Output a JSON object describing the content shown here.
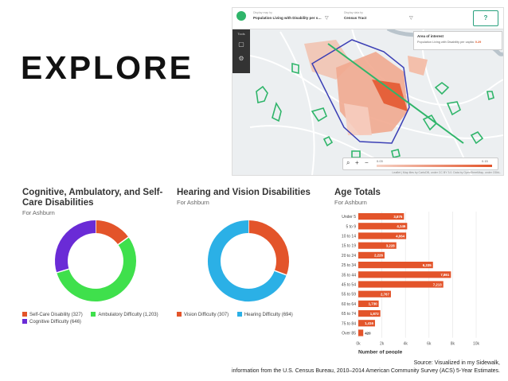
{
  "heading": "EXPLORE",
  "map": {
    "display_map_by_label": "Display map by",
    "display_map_by_value": "Population Living with Disability per s…",
    "display_data_by_label": "Display data by",
    "display_data_by_value": "Census Tract",
    "help_icon": "help-icon",
    "tools_label": "Tools",
    "aoi_title": "Area of interest",
    "aoi_text": "Population Living with Disability per capita:",
    "aoi_value": "0.29",
    "scale_min": "0.03",
    "scale_max": "0.15",
    "attribution": "Leaflet | Map tiles by CartoDB, under CC BY 3.0. Data by OpenStreetMap, under ODbL.",
    "accent": "#e3542a",
    "green": "#2fb56a",
    "boundary": "#3b3fb5"
  },
  "panel1": {
    "title_line1": "Cognitive, Ambulatory, and Self-",
    "title_line2": "Care Disabilities",
    "subtitle": "For Ashburn",
    "legend": [
      {
        "label": "Self-Care Disability (327)",
        "color": "#e3542a"
      },
      {
        "label": "Ambulatory Difficulty (1,203)",
        "color": "#3fe04c"
      },
      {
        "label": "Cognitive Difficulty (646)",
        "color": "#6a2bd6"
      }
    ]
  },
  "panel2": {
    "title": "Hearing and Vision Disabilities",
    "subtitle": "For Ashburn",
    "legend": [
      {
        "label": "Vision Difficulty (307)",
        "color": "#e3542a"
      },
      {
        "label": "Hearing Difficulty (694)",
        "color": "#2bb0e6"
      }
    ]
  },
  "panel3": {
    "title": "Age Totals",
    "subtitle": "For Ashburn"
  },
  "chart_data": [
    {
      "type": "pie",
      "title": "Cognitive, Ambulatory, and Self-Care Disabilities",
      "categories": [
        "Self-Care Disability",
        "Ambulatory Difficulty",
        "Cognitive Difficulty"
      ],
      "values": [
        327,
        1203,
        646
      ],
      "colors": [
        "#e3542a",
        "#3fe04c",
        "#6a2bd6"
      ]
    },
    {
      "type": "pie",
      "title": "Hearing and Vision Disabilities",
      "categories": [
        "Vision Difficulty",
        "Hearing Difficulty"
      ],
      "values": [
        307,
        694
      ],
      "colors": [
        "#e3542a",
        "#2bb0e6"
      ]
    },
    {
      "type": "bar",
      "orientation": "horizontal",
      "title": "Age Totals",
      "categories": [
        "Under 5",
        "5 to 9",
        "10 to 14",
        "15 to 19",
        "20 to 24",
        "25 to 34",
        "35 to 44",
        "45 to 54",
        "55 to 59",
        "60 to 64",
        "65 to 74",
        "75 to 84",
        "Over 85"
      ],
      "values": [
        3875,
        4146,
        4064,
        3228,
        2226,
        6335,
        7861,
        7213,
        2767,
        1730,
        1872,
        1416,
        420
      ],
      "labels": [
        "3,875",
        "4,146",
        "4,064",
        "3,228",
        "2,226",
        "6,335",
        "7,861",
        "7,213",
        "2,767",
        "1,730",
        "1,872",
        "1,416",
        "420"
      ],
      "xlim": [
        0,
        10000
      ],
      "xticks": [
        "0k",
        "2k",
        "4k",
        "6k",
        "8k",
        "10k"
      ],
      "xlabel": "Number of people",
      "color": "#e3542a"
    }
  ],
  "source_line1": "Source: Visualized in my Sidewalk,",
  "source_line2": "information from the U.S. Census Bureau, 2010–2014 American Community Survey (ACS) 5-Year Estimates."
}
